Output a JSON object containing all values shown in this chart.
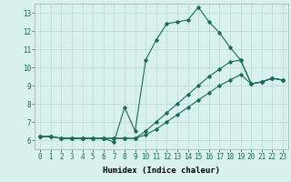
{
  "xlabel": "Humidex (Indice chaleur)",
  "bg_color": "#d8f0ee",
  "grid_color": "#b8d8d4",
  "line_color": "#1a6b5a",
  "xlim": [
    -0.5,
    23.5
  ],
  "ylim": [
    5.5,
    13.5
  ],
  "xticks": [
    0,
    1,
    2,
    3,
    4,
    5,
    6,
    7,
    8,
    9,
    10,
    11,
    12,
    13,
    14,
    15,
    16,
    17,
    18,
    19,
    20,
    21,
    22,
    23
  ],
  "yticks": [
    6,
    7,
    8,
    9,
    10,
    11,
    12,
    13
  ],
  "series": [
    {
      "x": [
        0,
        1,
        2,
        3,
        4,
        5,
        6,
        7,
        8,
        9,
        10,
        11,
        12,
        13,
        14,
        15,
        16,
        17,
        18,
        19,
        20,
        21,
        22,
        23
      ],
      "y": [
        6.2,
        6.2,
        6.1,
        6.1,
        6.1,
        6.1,
        6.1,
        5.9,
        7.8,
        6.5,
        10.4,
        11.5,
        12.4,
        12.5,
        12.6,
        13.3,
        12.5,
        11.9,
        11.1,
        10.4,
        9.1,
        9.2,
        9.4,
        9.3
      ]
    },
    {
      "x": [
        0,
        1,
        2,
        3,
        4,
        5,
        6,
        7,
        8,
        9,
        10,
        11,
        12,
        13,
        14,
        15,
        16,
        17,
        18,
        19,
        20,
        21,
        22,
        23
      ],
      "y": [
        6.2,
        6.2,
        6.1,
        6.1,
        6.1,
        6.1,
        6.1,
        6.1,
        6.1,
        6.1,
        6.5,
        7.0,
        7.5,
        8.0,
        8.5,
        9.0,
        9.5,
        9.9,
        10.3,
        10.4,
        9.1,
        9.2,
        9.4,
        9.3
      ]
    },
    {
      "x": [
        0,
        1,
        2,
        3,
        4,
        5,
        6,
        7,
        8,
        9,
        10,
        11,
        12,
        13,
        14,
        15,
        16,
        17,
        18,
        19,
        20,
        21,
        22,
        23
      ],
      "y": [
        6.2,
        6.2,
        6.1,
        6.1,
        6.1,
        6.1,
        6.1,
        6.1,
        6.1,
        6.1,
        6.3,
        6.6,
        7.0,
        7.4,
        7.8,
        8.2,
        8.6,
        9.0,
        9.3,
        9.6,
        9.1,
        9.2,
        9.4,
        9.3
      ]
    }
  ],
  "marker": "D",
  "markersize": 1.8,
  "linewidth": 0.8,
  "label_fontsize": 6.5,
  "tick_fontsize": 5.5
}
